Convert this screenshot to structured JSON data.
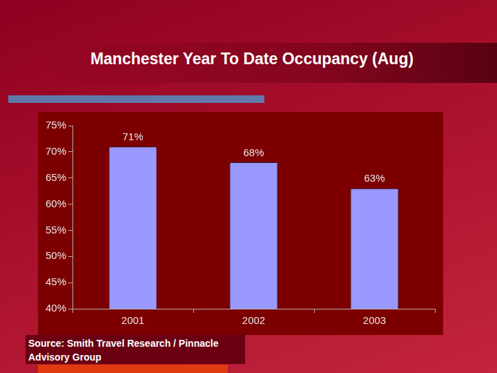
{
  "chart_data": {
    "type": "bar",
    "title": "Manchester Year To Date Occupancy (Aug)",
    "source": "Source: Smith Travel Research / Pinnacle Advisory Group",
    "categories": [
      "2001",
      "2002",
      "2003"
    ],
    "values": [
      71,
      68,
      63
    ],
    "value_labels": [
      "71%",
      "68%",
      "63%"
    ],
    "data_labels": true,
    "color": "#9999ff",
    "ylim": [
      40,
      75
    ],
    "yticks": [
      {
        "value": 40,
        "label": "40%"
      },
      {
        "value": 45,
        "label": "45%"
      },
      {
        "value": 50,
        "label": "50%"
      },
      {
        "value": 55,
        "label": "55%"
      },
      {
        "value": 60,
        "label": "60%"
      },
      {
        "value": 65,
        "label": "65%"
      },
      {
        "value": 70,
        "label": "70%"
      },
      {
        "value": 75,
        "label": "75%"
      }
    ],
    "grid": false
  }
}
